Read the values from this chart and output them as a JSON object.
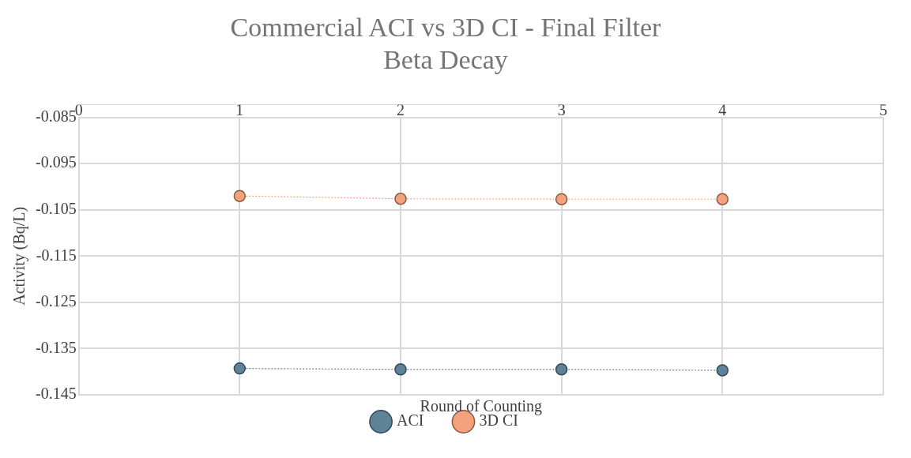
{
  "chart_data": {
    "type": "line",
    "title": "Commercial ACI vs 3D CI - Final Filter",
    "subtitle": "Beta Decay",
    "xlabel": "Round of Counting",
    "ylabel": "Activity (Bq/L)",
    "x": [
      1,
      2,
      3,
      4
    ],
    "series": [
      {
        "name": "ACI",
        "color": "#5e8297",
        "values": [
          -0.1393,
          -0.1395,
          -0.1395,
          -0.1397
        ]
      },
      {
        "name": "3D CI",
        "color": "#f4a27e",
        "values": [
          -0.102,
          -0.1026,
          -0.1027,
          -0.1027
        ]
      }
    ],
    "xlim": [
      0,
      5
    ],
    "xticks": [
      0,
      1,
      2,
      3,
      4,
      5
    ],
    "ylim": [
      -0.145,
      -0.085
    ],
    "yticks": [
      -0.145,
      -0.135,
      -0.125,
      -0.115,
      -0.105,
      -0.095,
      -0.085
    ],
    "grid": true,
    "legend": "bottom",
    "marker": "circle",
    "line_style": "dotted"
  }
}
